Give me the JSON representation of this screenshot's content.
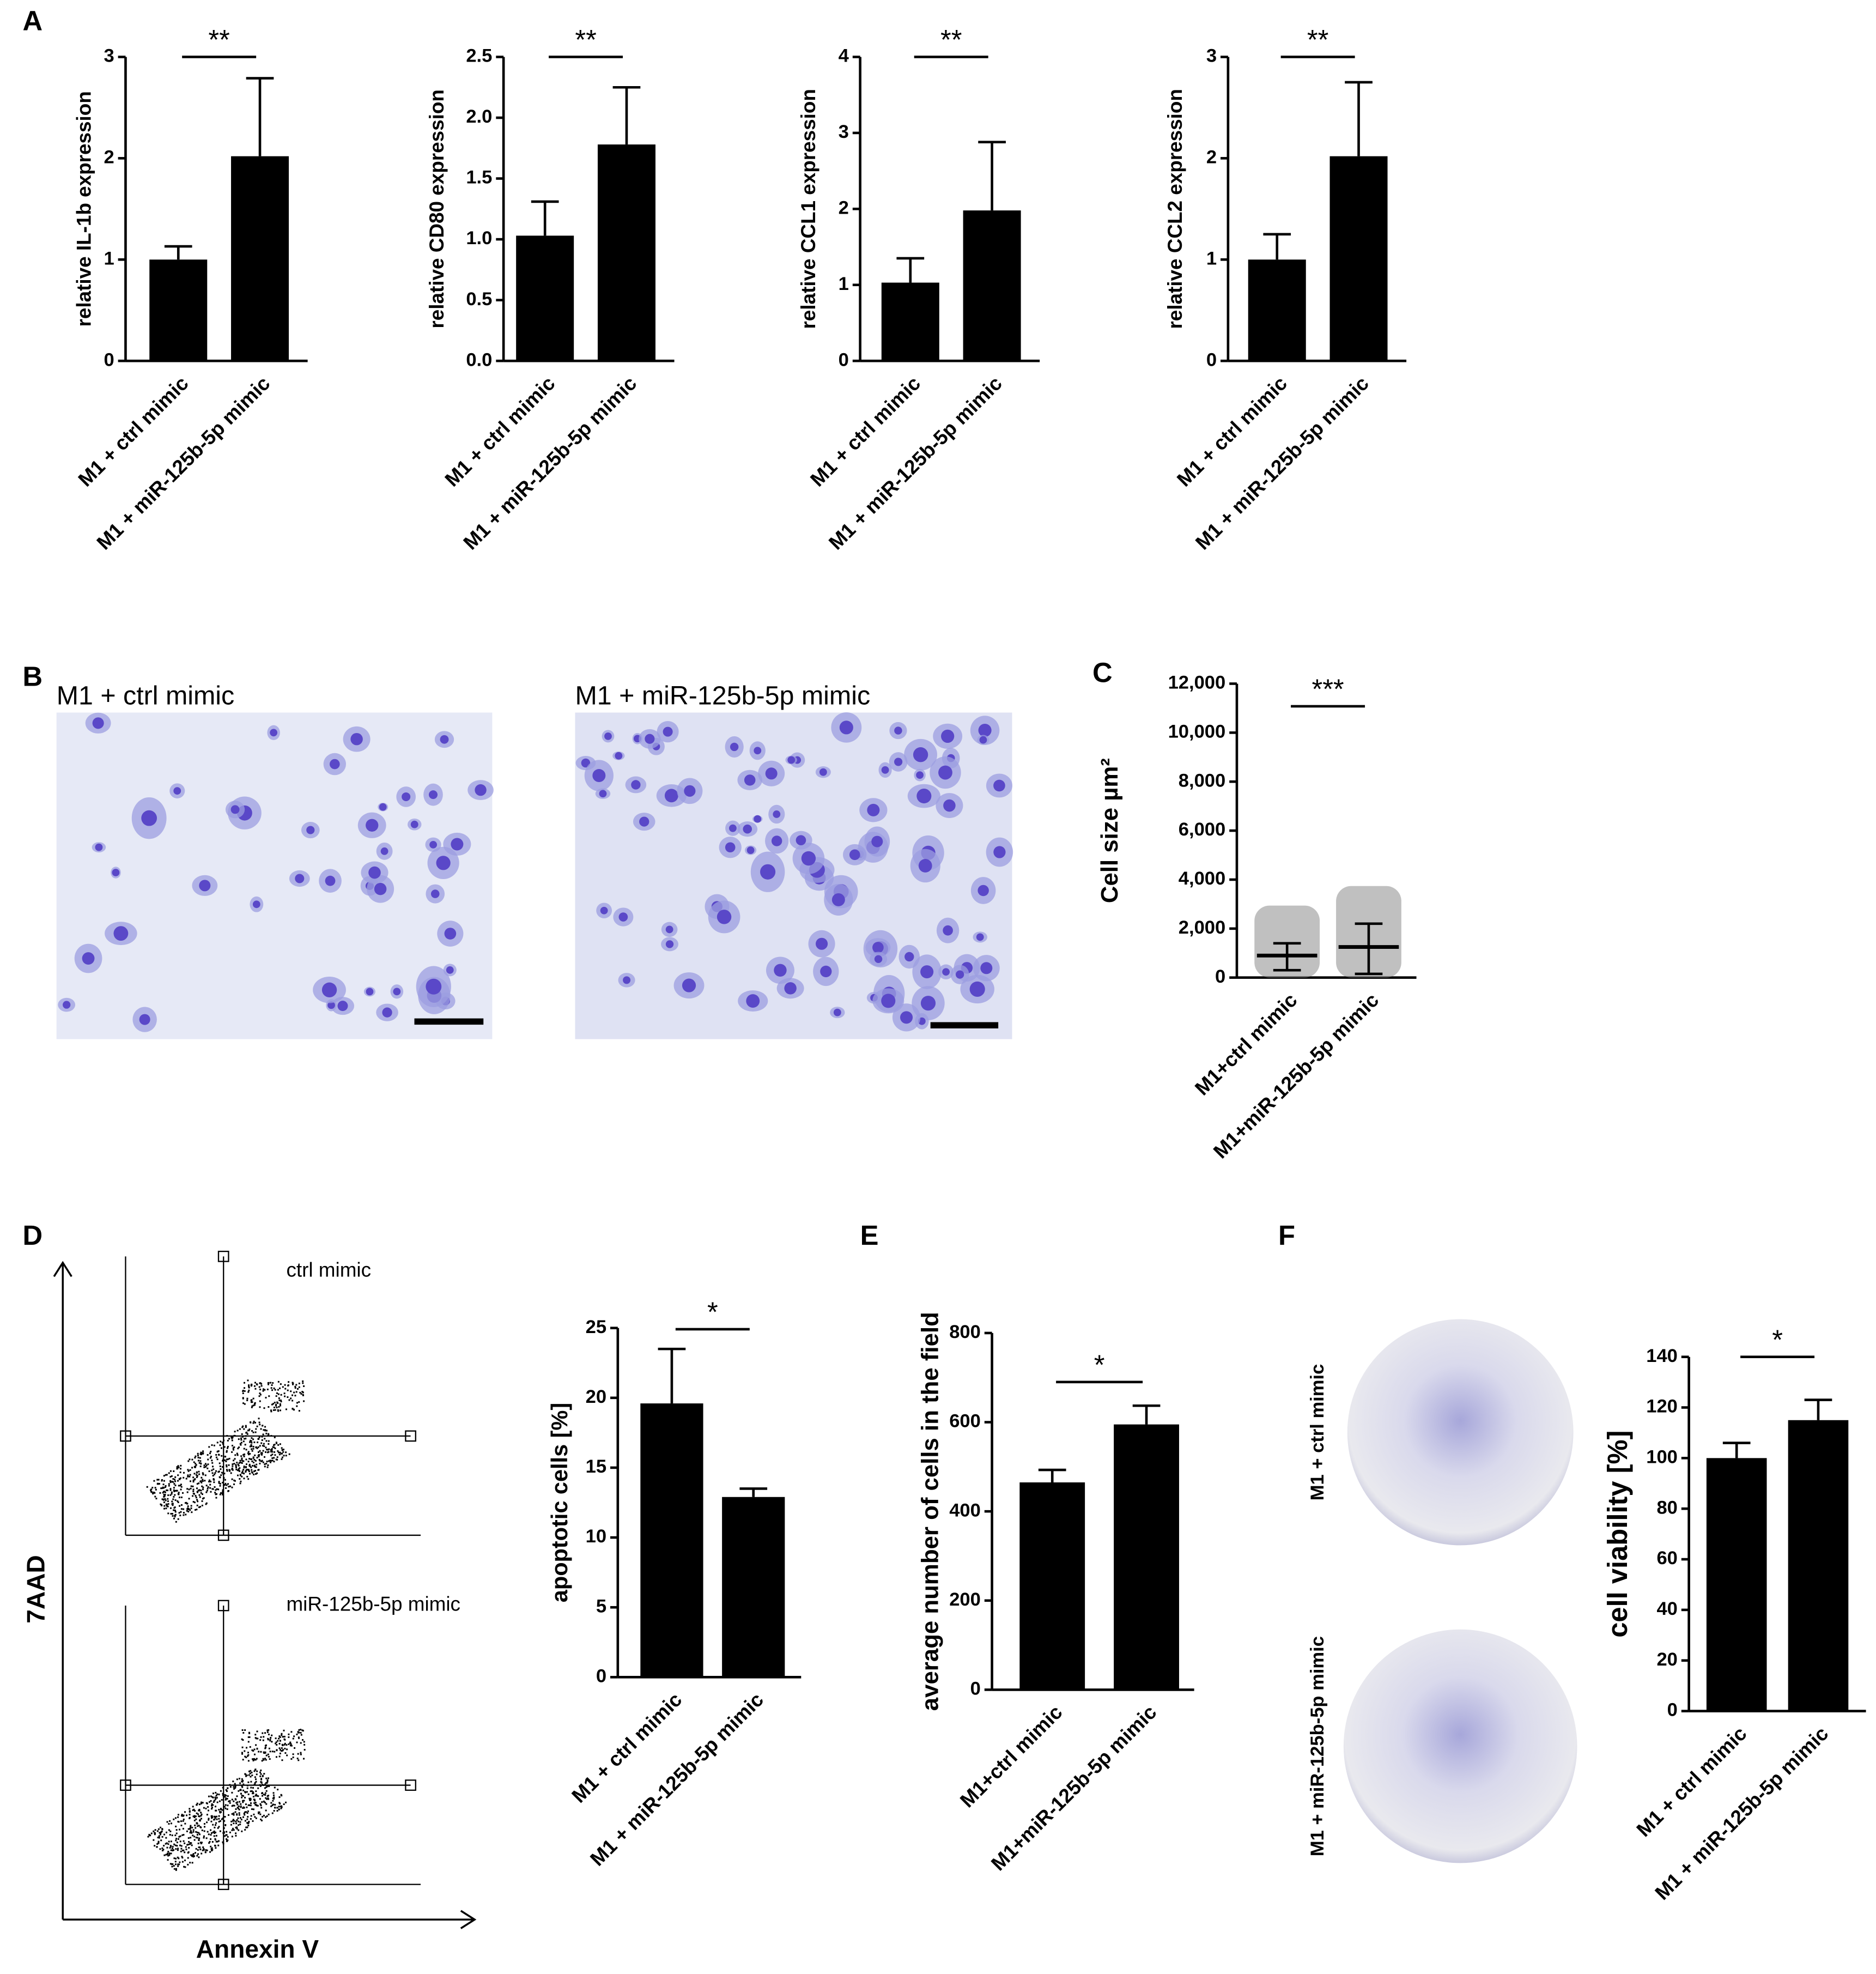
{
  "panel_labels": [
    "A",
    "B",
    "C",
    "D",
    "E",
    "F"
  ],
  "micrographs": {
    "labels": [
      "M1 + ctrl mimic",
      "M1 + miR-125b-5p mimic"
    ]
  },
  "flow": {
    "labels": [
      "ctrl mimic",
      "miR-125b-5p mimic"
    ],
    "y_axis": "7AAD",
    "x_axis": "Annexin V"
  },
  "wells": {
    "labels": [
      "M1 + ctrl mimic",
      "M1 + miR-125b-5p mimic"
    ]
  },
  "chart_data": [
    {
      "type": "bar",
      "y_label": "relative IL-1b expression",
      "categories": [
        "M1 + ctrl mimic",
        "M1 + miR-125b-5p mimic"
      ],
      "values": [
        1.0,
        2.02
      ],
      "errors": [
        0.13,
        0.77
      ],
      "color": "#000000",
      "ylim": [
        0,
        3
      ],
      "yticks": [
        0,
        1,
        2,
        3
      ],
      "significance": "**"
    },
    {
      "type": "bar",
      "y_label": "relative CD80 expression",
      "categories": [
        "M1 + ctrl mimic",
        "M1 + miR-125b-5p mimic"
      ],
      "values": [
        1.03,
        1.78
      ],
      "errors": [
        0.28,
        0.47
      ],
      "color": "#000000",
      "ylim": [
        0,
        2.5
      ],
      "yticks": [
        {
          "value": 0,
          "label": "0.0"
        },
        0.5,
        {
          "value": 1,
          "label": "1.0"
        },
        1.5,
        {
          "value": 2,
          "label": "2.0"
        },
        2.5
      ],
      "significance": "**"
    },
    {
      "type": "bar",
      "y_label": "relative CCL1 expression",
      "categories": [
        "M1 + ctrl mimic",
        "M1 + miR-125b-5p mimic"
      ],
      "values": [
        1.03,
        1.98
      ],
      "errors": [
        0.32,
        0.9
      ],
      "color": "#000000",
      "ylim": [
        0,
        4
      ],
      "yticks": [
        0,
        1,
        2,
        3,
        4
      ],
      "significance": "**"
    },
    {
      "type": "bar",
      "y_label": "relative CCL2 expression",
      "categories": [
        "M1 + ctrl mimic",
        "M1 + miR-125b-5p mimic"
      ],
      "values": [
        1.0,
        2.02
      ],
      "errors": [
        0.25,
        0.73
      ],
      "color": "#000000",
      "ylim": [
        0,
        3
      ],
      "yticks": [
        0,
        1,
        2,
        3
      ],
      "significance": "**"
    },
    {
      "type": "scatter",
      "y_label": "Cell size µm²",
      "categories": [
        "M1+ctrl mimic",
        "M1+miR-125b-5p mimic"
      ],
      "medians": [
        900,
        1250
      ],
      "lower": [
        300,
        150
      ],
      "upper": [
        1400,
        2200
      ],
      "color": "#8c8c8c",
      "ylim": [
        0,
        12000
      ],
      "yticks": [
        0,
        {
          "value": 2000,
          "label": "2,000"
        },
        {
          "value": 4000,
          "label": "4,000"
        },
        {
          "value": 6000,
          "label": "6,000"
        },
        {
          "value": 8000,
          "label": "8,000"
        },
        {
          "value": 10000,
          "label": "10,000"
        },
        {
          "value": 12000,
          "label": "12,000"
        }
      ],
      "significance": "***"
    },
    {
      "type": "bar",
      "y_label": "apoptotic cells [%]",
      "categories": [
        "M1 + ctrl mimic",
        "M1 + miR-125b-5p mimic"
      ],
      "values": [
        19.6,
        12.9
      ],
      "errors": [
        3.9,
        0.6
      ],
      "color": "#000000",
      "ylim": [
        0,
        25
      ],
      "yticks": [
        0,
        5,
        10,
        15,
        20,
        25
      ],
      "significance": "*"
    },
    {
      "type": "bar",
      "y_label": "average number of cells in the field",
      "categories": [
        "M1+ctrl mimic",
        "M1+miR-125b-5p mimic"
      ],
      "values": [
        465,
        595
      ],
      "errors": [
        28,
        42
      ],
      "color": "#000000",
      "ylim": [
        0,
        800
      ],
      "yticks": [
        0,
        200,
        400,
        600,
        800
      ],
      "significance": "*"
    },
    {
      "type": "bar",
      "y_label": "cell viability [%]",
      "categories": [
        "M1 + ctrl mimic",
        "M1 + miR-125b-5p mimic"
      ],
      "values": [
        100,
        115
      ],
      "errors": [
        6,
        8
      ],
      "color": "#000000",
      "ylim": [
        0,
        140
      ],
      "yticks": [
        0,
        20,
        40,
        60,
        80,
        100,
        120,
        140
      ],
      "significance": "*"
    }
  ]
}
